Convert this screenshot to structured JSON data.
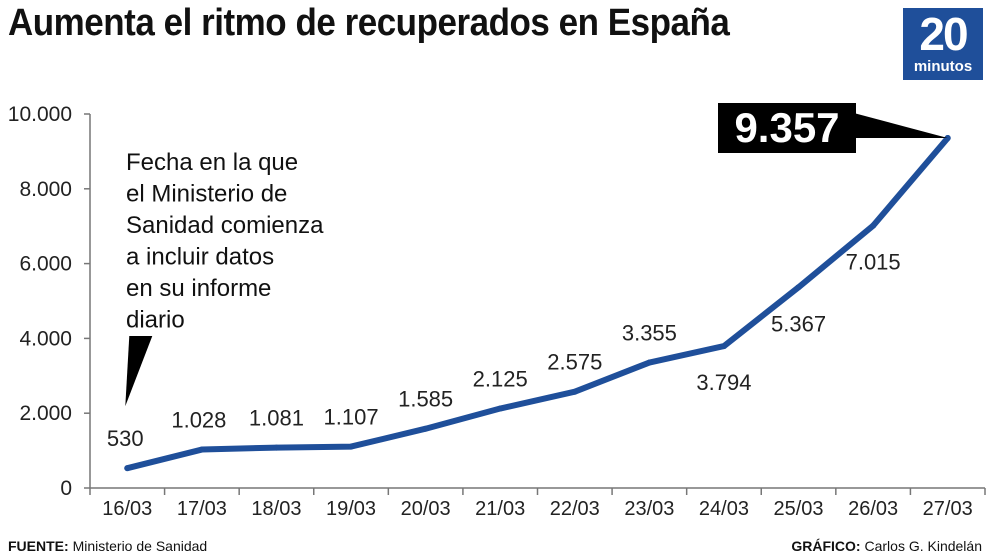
{
  "header": {
    "title": "Aumenta el ritmo de recuperados en España",
    "logo_number": "20",
    "logo_word": "minutos",
    "logo_color": "#1f4f9a"
  },
  "footer": {
    "source_label": "FUENTE:",
    "source_value": "Ministerio de Sanidad",
    "credit_label": "GRÁFICO:",
    "credit_value": "Carlos G. Kindelán"
  },
  "chart_data": {
    "type": "line",
    "title": "Aumenta el ritmo de recuperados en España",
    "xlabel": "",
    "ylabel": "",
    "categories": [
      "16/03",
      "17/03",
      "18/03",
      "19/03",
      "20/03",
      "21/03",
      "22/03",
      "23/03",
      "24/03",
      "25/03",
      "26/03",
      "27/03"
    ],
    "series": [
      {
        "values": [
          530,
          1028,
          1081,
          1107,
          1585,
          2125,
          2575,
          3355,
          3794,
          5367,
          7015,
          9357
        ],
        "color": "#1f4f9a"
      }
    ],
    "data_labels": [
      "530",
      "1.028",
      "1.081",
      "1.107",
      "1.585",
      "2.125",
      "2.575",
      "3.355",
      "3.794",
      "5.367",
      "7.015",
      "9.357"
    ],
    "ylim": [
      0,
      10000
    ],
    "y_ticks": [
      0,
      2000,
      4000,
      6000,
      8000,
      10000
    ],
    "y_tick_labels": [
      "0",
      "2.000",
      "4.000",
      "6.000",
      "8.000",
      "10.000"
    ],
    "grid": false,
    "annotation": "Fecha en la que el Ministerio de Sanidad comienza a incluir datos en su informe diario",
    "annotation_lines": [
      "Fecha en la que",
      "el Ministerio de",
      "Sanidad comienza",
      "a incluir datos",
      "en su informe",
      "diario"
    ],
    "highlight_label": "9.357"
  }
}
